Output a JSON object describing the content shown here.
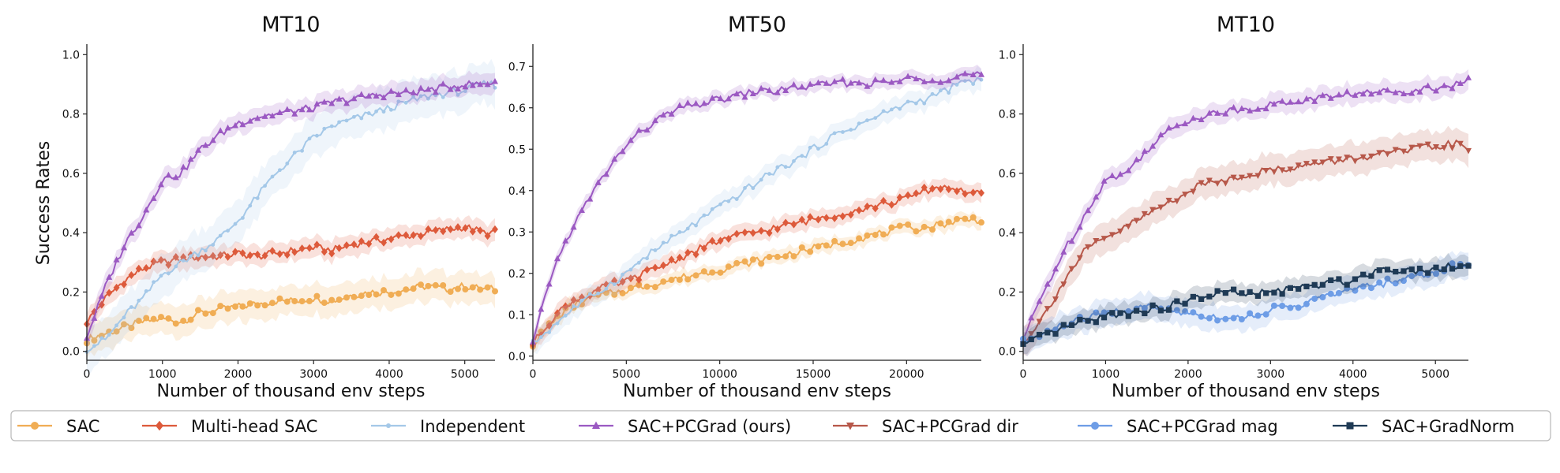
{
  "chart_data": [
    {
      "type": "line",
      "title": "MT10",
      "xlabel": "Number of thousand env steps",
      "ylabel": "Success Rates",
      "xlim": [
        0,
        5400
      ],
      "ylim": [
        -0.03,
        1.03
      ],
      "xticks": [
        0,
        1000,
        2000,
        3000,
        4000,
        5000
      ],
      "yticks": [
        0.0,
        0.2,
        0.4,
        0.6,
        0.8,
        1.0
      ],
      "ytick_labels": [
        "0.0",
        "0.2",
        "0.4",
        "0.6",
        "0.8",
        "1.0"
      ],
      "series": [
        {
          "name": "SAC",
          "color": "#f0ad55",
          "marker": "circle",
          "band": 0.06,
          "x": [
            0,
            250,
            500,
            750,
            1000,
            1250,
            1500,
            1750,
            2000,
            2250,
            2500,
            2750,
            3000,
            3250,
            3500,
            3750,
            4000,
            4250,
            4500,
            4750,
            5000,
            5250,
            5400
          ],
          "y": [
            0.04,
            0.06,
            0.08,
            0.1,
            0.11,
            0.1,
            0.13,
            0.14,
            0.15,
            0.16,
            0.17,
            0.17,
            0.18,
            0.17,
            0.19,
            0.2,
            0.2,
            0.21,
            0.22,
            0.21,
            0.22,
            0.21,
            0.21
          ]
        },
        {
          "name": "Multi-head SAC",
          "color": "#dd5a3b",
          "marker": "diamond",
          "band": 0.04,
          "x": [
            0,
            250,
            500,
            750,
            1000,
            1250,
            1500,
            1750,
            2000,
            2250,
            2500,
            2750,
            3000,
            3250,
            3500,
            3750,
            4000,
            4250,
            4500,
            4750,
            5000,
            5250,
            5400
          ],
          "y": [
            0.1,
            0.18,
            0.24,
            0.28,
            0.3,
            0.31,
            0.32,
            0.32,
            0.33,
            0.32,
            0.33,
            0.34,
            0.35,
            0.34,
            0.36,
            0.37,
            0.38,
            0.39,
            0.4,
            0.41,
            0.42,
            0.4,
            0.4
          ]
        },
        {
          "name": "Independent",
          "color": "#a4c8e8",
          "marker": "dot",
          "band": 0.08,
          "x": [
            0,
            250,
            500,
            750,
            1000,
            1250,
            1500,
            1750,
            2000,
            2250,
            2500,
            2750,
            3000,
            3250,
            3500,
            3750,
            4000,
            4250,
            4500,
            4750,
            5000,
            5250,
            5400
          ],
          "y": [
            0.01,
            0.04,
            0.12,
            0.18,
            0.26,
            0.3,
            0.34,
            0.38,
            0.44,
            0.52,
            0.6,
            0.66,
            0.72,
            0.76,
            0.78,
            0.8,
            0.82,
            0.84,
            0.86,
            0.87,
            0.88,
            0.9,
            0.9
          ]
        },
        {
          "name": "SAC+PCGrad (ours)",
          "color": "#9b59c2",
          "marker": "triangle-up",
          "band": 0.04,
          "x": [
            0,
            250,
            500,
            750,
            1000,
            1250,
            1500,
            1750,
            2000,
            2250,
            2500,
            2750,
            3000,
            3250,
            3500,
            3750,
            4000,
            4250,
            4500,
            4750,
            5000,
            5250,
            5400
          ],
          "y": [
            0.05,
            0.22,
            0.36,
            0.46,
            0.58,
            0.6,
            0.68,
            0.73,
            0.77,
            0.79,
            0.8,
            0.81,
            0.82,
            0.84,
            0.85,
            0.86,
            0.87,
            0.87,
            0.88,
            0.89,
            0.9,
            0.9,
            0.91
          ]
        }
      ]
    },
    {
      "type": "line",
      "title": "MT50",
      "xlabel": "Number of thousand env steps",
      "ylabel": "",
      "xlim": [
        0,
        24000
      ],
      "ylim": [
        -0.01,
        0.75
      ],
      "xticks": [
        0,
        5000,
        10000,
        15000,
        20000
      ],
      "yticks": [
        0.0,
        0.1,
        0.2,
        0.3,
        0.4,
        0.5,
        0.6,
        0.7
      ],
      "ytick_labels": [
        "0.0",
        "0.1",
        "0.2",
        "0.3",
        "0.4",
        "0.5",
        "0.6",
        "0.7"
      ],
      "series": [
        {
          "name": "SAC",
          "color": "#f0ad55",
          "marker": "circle",
          "band": 0.02,
          "x": [
            0,
            1000,
            2000,
            3000,
            4000,
            5000,
            6000,
            7000,
            8000,
            9000,
            10000,
            11000,
            12000,
            13000,
            14000,
            15000,
            16000,
            17000,
            18000,
            19000,
            20000,
            21000,
            22000,
            23000,
            24000
          ],
          "y": [
            0.03,
            0.08,
            0.12,
            0.14,
            0.15,
            0.16,
            0.17,
            0.18,
            0.19,
            0.2,
            0.21,
            0.22,
            0.23,
            0.24,
            0.25,
            0.26,
            0.27,
            0.28,
            0.29,
            0.3,
            0.31,
            0.31,
            0.32,
            0.33,
            0.33
          ]
        },
        {
          "name": "Multi-head SAC",
          "color": "#dd5a3b",
          "marker": "diamond",
          "band": 0.025,
          "x": [
            0,
            1000,
            2000,
            3000,
            4000,
            5000,
            6000,
            7000,
            8000,
            9000,
            10000,
            11000,
            12000,
            13000,
            14000,
            15000,
            16000,
            17000,
            18000,
            19000,
            20000,
            21000,
            22000,
            23000,
            24000
          ],
          "y": [
            0.03,
            0.09,
            0.13,
            0.15,
            0.17,
            0.18,
            0.2,
            0.22,
            0.24,
            0.26,
            0.28,
            0.29,
            0.3,
            0.31,
            0.32,
            0.33,
            0.34,
            0.35,
            0.36,
            0.37,
            0.38,
            0.4,
            0.41,
            0.4,
            0.39
          ]
        },
        {
          "name": "Independent",
          "color": "#a4c8e8",
          "marker": "dot",
          "band": 0.03,
          "x": [
            0,
            1000,
            2000,
            3000,
            4000,
            5000,
            6000,
            7000,
            8000,
            9000,
            10000,
            11000,
            12000,
            13000,
            14000,
            15000,
            16000,
            17000,
            18000,
            19000,
            20000,
            21000,
            22000,
            23000,
            24000
          ],
          "y": [
            0.03,
            0.07,
            0.11,
            0.14,
            0.17,
            0.2,
            0.24,
            0.27,
            0.3,
            0.33,
            0.36,
            0.39,
            0.42,
            0.45,
            0.47,
            0.5,
            0.53,
            0.55,
            0.57,
            0.59,
            0.61,
            0.62,
            0.64,
            0.66,
            0.67
          ]
        },
        {
          "name": "SAC+PCGrad (ours)",
          "color": "#9b59c2",
          "marker": "triangle-up",
          "band": 0.02,
          "x": [
            0,
            1000,
            2000,
            3000,
            4000,
            5000,
            6000,
            7000,
            8000,
            9000,
            10000,
            11000,
            12000,
            13000,
            14000,
            15000,
            16000,
            17000,
            18000,
            19000,
            20000,
            21000,
            22000,
            23000,
            24000
          ],
          "y": [
            0.03,
            0.2,
            0.3,
            0.38,
            0.45,
            0.51,
            0.55,
            0.58,
            0.6,
            0.61,
            0.62,
            0.63,
            0.64,
            0.64,
            0.65,
            0.65,
            0.66,
            0.66,
            0.66,
            0.66,
            0.67,
            0.67,
            0.67,
            0.68,
            0.68
          ]
        }
      ]
    },
    {
      "type": "line",
      "title": "MT10",
      "xlabel": "Number of thousand env steps",
      "ylabel": "",
      "xlim": [
        0,
        5400
      ],
      "ylim": [
        -0.03,
        1.03
      ],
      "xticks": [
        0,
        1000,
        2000,
        3000,
        4000,
        5000
      ],
      "yticks": [
        0.0,
        0.2,
        0.4,
        0.6,
        0.8,
        1.0
      ],
      "ytick_labels": [
        "0.0",
        "0.2",
        "0.4",
        "0.6",
        "0.8",
        "1.0"
      ],
      "series": [
        {
          "name": "SAC+PCGrad (ours)",
          "color": "#9b59c2",
          "marker": "triangle-up",
          "band": 0.04,
          "x": [
            0,
            250,
            500,
            750,
            1000,
            1250,
            1500,
            1750,
            2000,
            2250,
            2500,
            2750,
            3000,
            3250,
            3500,
            3750,
            4000,
            4250,
            4500,
            4750,
            5000,
            5250,
            5400
          ],
          "y": [
            0.04,
            0.2,
            0.34,
            0.46,
            0.58,
            0.6,
            0.68,
            0.74,
            0.78,
            0.8,
            0.81,
            0.82,
            0.83,
            0.84,
            0.85,
            0.86,
            0.87,
            0.87,
            0.88,
            0.88,
            0.89,
            0.9,
            0.91
          ]
        },
        {
          "name": "SAC+PCGrad dir",
          "color": "#b7584a",
          "marker": "triangle-down",
          "band": 0.06,
          "x": [
            0,
            250,
            500,
            750,
            1000,
            1250,
            1500,
            1750,
            2000,
            2250,
            2500,
            2750,
            3000,
            3250,
            3500,
            3750,
            4000,
            4250,
            4500,
            4750,
            5000,
            5250,
            5400
          ],
          "y": [
            0.03,
            0.12,
            0.24,
            0.34,
            0.38,
            0.42,
            0.46,
            0.5,
            0.54,
            0.57,
            0.58,
            0.6,
            0.61,
            0.62,
            0.63,
            0.64,
            0.65,
            0.66,
            0.67,
            0.68,
            0.69,
            0.7,
            0.68
          ]
        },
        {
          "name": "SAC+PCGrad mag",
          "color": "#6e9de6",
          "marker": "circle",
          "band": 0.05,
          "x": [
            0,
            250,
            500,
            750,
            1000,
            1250,
            1500,
            1750,
            2000,
            2250,
            2500,
            2750,
            3000,
            3250,
            3500,
            3750,
            4000,
            4250,
            4500,
            4750,
            5000,
            5250,
            5400
          ],
          "y": [
            0.03,
            0.06,
            0.09,
            0.11,
            0.13,
            0.14,
            0.15,
            0.14,
            0.13,
            0.12,
            0.11,
            0.12,
            0.14,
            0.15,
            0.17,
            0.19,
            0.21,
            0.22,
            0.24,
            0.25,
            0.27,
            0.29,
            0.3
          ]
        },
        {
          "name": "SAC+GradNorm",
          "color": "#1f3a55",
          "marker": "square",
          "band": 0.04,
          "x": [
            0,
            250,
            500,
            750,
            1000,
            1250,
            1500,
            1750,
            2000,
            2250,
            2500,
            2750,
            3000,
            3250,
            3500,
            3750,
            4000,
            4250,
            4500,
            4750,
            5000,
            5250,
            5400
          ],
          "y": [
            0.02,
            0.05,
            0.08,
            0.1,
            0.12,
            0.13,
            0.14,
            0.15,
            0.17,
            0.19,
            0.2,
            0.19,
            0.2,
            0.21,
            0.22,
            0.23,
            0.24,
            0.27,
            0.28,
            0.27,
            0.28,
            0.29,
            0.29
          ]
        }
      ]
    }
  ],
  "legend": {
    "items": [
      {
        "label": "SAC",
        "color": "#f0ad55",
        "marker": "circle"
      },
      {
        "label": "Multi-head SAC",
        "color": "#dd5a3b",
        "marker": "diamond"
      },
      {
        "label": "Independent",
        "color": "#a4c8e8",
        "marker": "dot"
      },
      {
        "label": "SAC+PCGrad (ours)",
        "color": "#9b59c2",
        "marker": "triangle-up"
      },
      {
        "label": "SAC+PCGrad dir",
        "color": "#b7584a",
        "marker": "triangle-down"
      },
      {
        "label": "SAC+PCGrad mag",
        "color": "#6e9de6",
        "marker": "circle"
      },
      {
        "label": "SAC+GradNorm",
        "color": "#1f3a55",
        "marker": "square"
      }
    ]
  }
}
